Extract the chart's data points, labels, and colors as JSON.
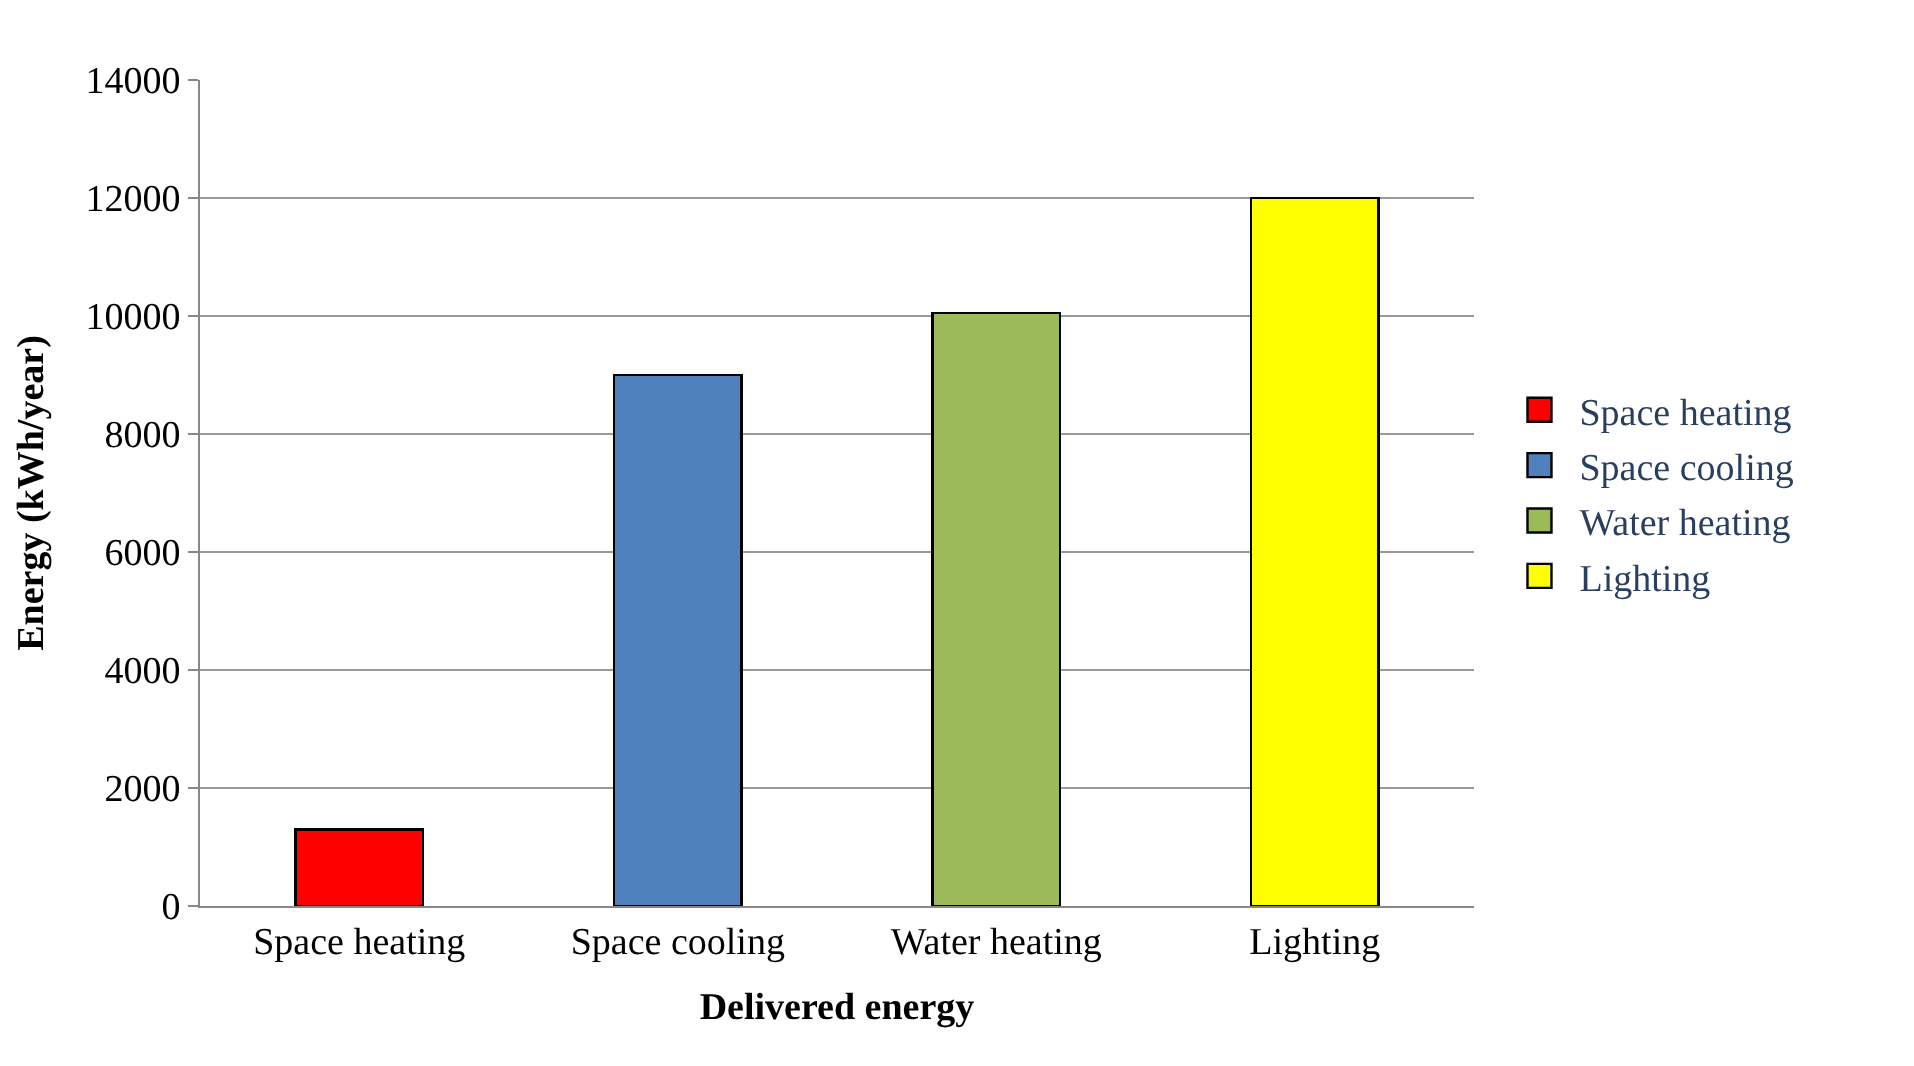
{
  "chart_data": {
    "type": "bar",
    "xlabel": "Delivered energy",
    "ylabel": "Energy (kWh/year)",
    "categories": [
      "Space heating",
      "Space cooling",
      "Water heating",
      "Lighting"
    ],
    "series": [
      {
        "name": "Space heating",
        "color": "#ff0000",
        "values": [
          1300,
          null,
          null,
          null
        ]
      },
      {
        "name": "Space cooling",
        "color": "#4f81bd",
        "values": [
          null,
          9000,
          null,
          null
        ]
      },
      {
        "name": "Water heating",
        "color": "#9bbb59",
        "values": [
          null,
          null,
          10050,
          null
        ]
      },
      {
        "name": "Lighting",
        "color": "#ffff00",
        "values": [
          null,
          null,
          null,
          12000
        ]
      }
    ],
    "stacked": true,
    "ylim": [
      0,
      14000
    ],
    "yticks": [
      0,
      2000,
      4000,
      6000,
      8000,
      10000,
      12000,
      14000
    ],
    "grid": "y",
    "legend": "right"
  }
}
